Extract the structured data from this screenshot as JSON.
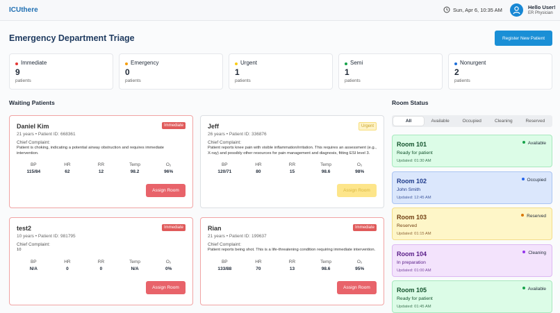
{
  "header": {
    "logo": "ICUthere",
    "datetime": "Sun, Apr 6, 10:35 AM",
    "greeting": "Hello User!",
    "role": "ER Physician"
  },
  "page": {
    "title": "Emergency Department Triage",
    "register_button": "Register New Patient"
  },
  "triage_summary": {
    "unit_label": "patients",
    "levels": [
      {
        "name": "Immediate",
        "count": 9,
        "color": "#e53935"
      },
      {
        "name": "Emergency",
        "count": 0,
        "color": "#f59e0b"
      },
      {
        "name": "Urgent",
        "count": 1,
        "color": "#facc15"
      },
      {
        "name": "Semi",
        "count": 1,
        "color": "#16a34a"
      },
      {
        "name": "Nonurgent",
        "count": 2,
        "color": "#1e6fd9"
      }
    ]
  },
  "waiting_patients": {
    "heading": "Waiting Patients",
    "complaint_label": "Chief Complaint:",
    "vital_labels": [
      "BP",
      "HR",
      "RR",
      "Temp",
      "O₂"
    ],
    "assign_button": "Assign Room",
    "patients": [
      {
        "name": "Daniel Kim",
        "info": "21 years • Patient ID: 668361",
        "level": "Immediate",
        "complaint": "Patient is choking, indicating a potential airway obstruction and requires immediate intervention.",
        "vitals": [
          "115/84",
          "62",
          "12",
          "98.2",
          "96%"
        ]
      },
      {
        "name": "Jeff",
        "info": "26 years • Patient ID: 336876",
        "level": "Urgent",
        "complaint": "Patient reports knee pain with visible inflammation/irritation. This requires an assessment (e.g., X-ray) and possibly other resources for pain management and diagnosis, fitting ESI level 3.",
        "vitals": [
          "120/71",
          "80",
          "15",
          "98.6",
          "98%"
        ]
      },
      {
        "name": "test2",
        "info": "10 years • Patient ID: 981795",
        "level": "Immediate",
        "complaint": "10",
        "vitals": [
          "N/A",
          "0",
          "0",
          "N/A",
          "0%"
        ]
      },
      {
        "name": "Rian",
        "info": "21 years • Patient ID: 199637",
        "level": "Immediate",
        "complaint": "Patient reports being shot. This is a life-threatening condition requiring immediate intervention.",
        "vitals": [
          "133/88",
          "70",
          "13",
          "98.6",
          "95%"
        ]
      }
    ]
  },
  "room_status": {
    "heading": "Room Status",
    "filters": [
      "All",
      "Available",
      "Occupied",
      "Cleaning",
      "Reserved"
    ],
    "rooms": [
      {
        "name": "Room 101",
        "status": "Available",
        "detail": "Ready for patient",
        "updated": "Updated: 01:30 AM"
      },
      {
        "name": "Room 102",
        "status": "Occupied",
        "detail": "John Smith",
        "updated": "Updated: 12:45 AM"
      },
      {
        "name": "Room 103",
        "status": "Reserved",
        "detail": "Reserved",
        "updated": "Updated: 01:15 AM"
      },
      {
        "name": "Room 104",
        "status": "Cleaning",
        "detail": "In preparation",
        "updated": "Updated: 01:00 AM"
      },
      {
        "name": "Room 105",
        "status": "Available",
        "detail": "Ready for patient",
        "updated": "Updated: 01:45 AM"
      }
    ]
  }
}
